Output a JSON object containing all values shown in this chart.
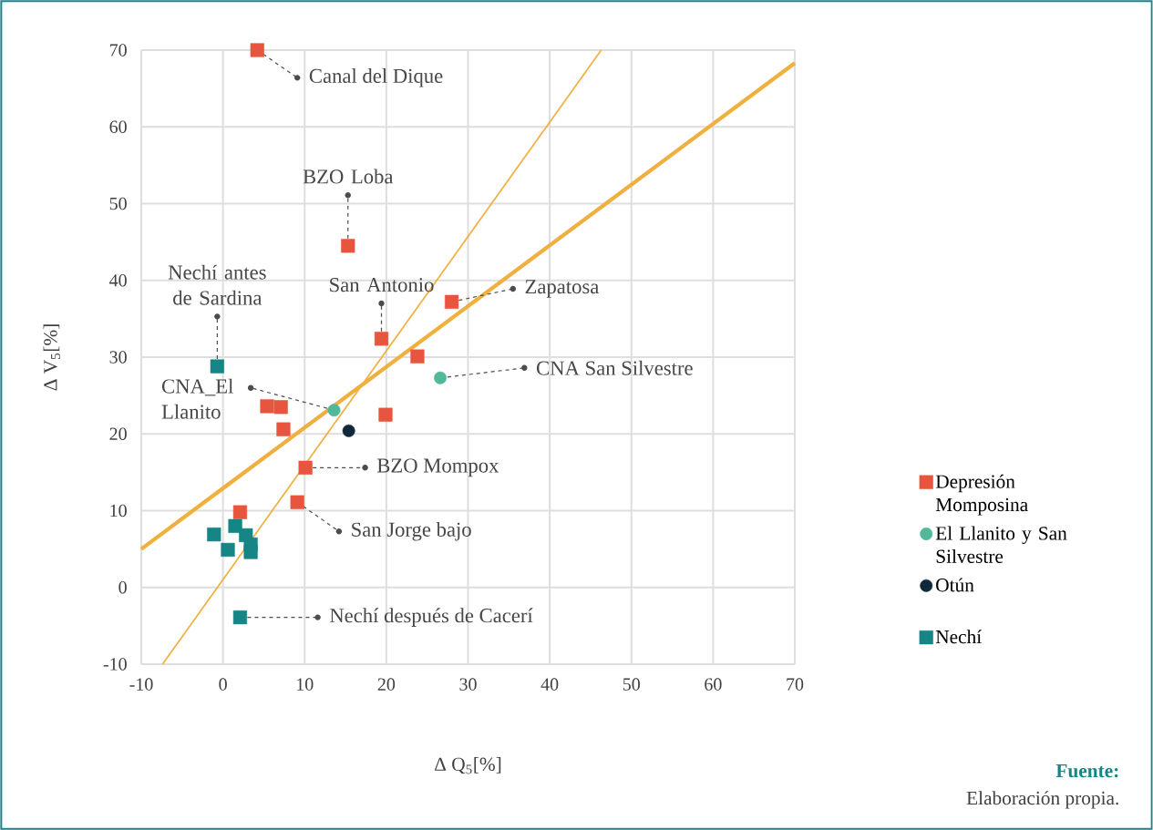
{
  "chart_data": {
    "type": "scatter",
    "xlabel": "Δ Q$_{5}$[%]",
    "ylabel": "Δ V$_{5}$[%]",
    "xlim": [
      -10,
      70
    ],
    "ylim": [
      -10,
      70
    ],
    "xticks": [
      -10,
      0,
      10,
      20,
      30,
      40,
      50,
      60,
      70
    ],
    "yticks": [
      -10,
      0,
      10,
      20,
      30,
      40,
      50,
      60,
      70
    ],
    "grid": true,
    "legend": "right",
    "series": [
      {
        "name": "Depresión Momposina",
        "color": "#e8553f",
        "marker": "square",
        "x": [
          4.2,
          15.3,
          19.4,
          28.0,
          23.8,
          19.9,
          5.4,
          7.1,
          7.4,
          10.1,
          9.1,
          2.1
        ],
        "values": [
          70.0,
          44.5,
          32.4,
          37.2,
          30.1,
          22.5,
          23.6,
          23.5,
          20.6,
          15.6,
          11.1,
          9.8
        ]
      },
      {
        "name": "El Llanito y San Silvestre",
        "color": "#52b89a",
        "marker": "circle",
        "x": [
          13.6,
          26.6
        ],
        "values": [
          23.1,
          27.3
        ]
      },
      {
        "name": "Otún",
        "color": "#10293a",
        "marker": "circle",
        "x": [
          15.4
        ],
        "values": [
          20.4
        ]
      },
      {
        "name": "Nechí",
        "color": "#168585",
        "marker": "square",
        "x": [
          -0.7,
          -1.1,
          1.5,
          2.8,
          3.4,
          3.4,
          0.6,
          2.1
        ],
        "values": [
          28.8,
          6.9,
          8.0,
          6.8,
          5.6,
          4.6,
          4.9,
          -3.9
        ]
      },
      {
        "type": "line",
        "color": "#f0b040",
        "x": [
          -10,
          70
        ],
        "values": [
          5.0,
          68.3
        ]
      },
      {
        "type": "line",
        "color": "#f0b040",
        "x": [
          -7.4,
          46.3
        ],
        "values": [
          -10,
          70
        ]
      }
    ],
    "annotations": [
      {
        "text": "Canal del Dique",
        "x": 4.2,
        "y": 70.0
      },
      {
        "text": "BZO Loba",
        "x": 15.3,
        "y": 44.5
      },
      {
        "text": "San Antonio",
        "x": 19.4,
        "y": 32.4
      },
      {
        "text": "Zapatosa",
        "x": 28.0,
        "y": 37.2
      },
      {
        "text": "CNA San Silvestre",
        "x": 26.6,
        "y": 27.3
      },
      {
        "text": "CNA_El Llanito",
        "x": 13.6,
        "y": 23.1
      },
      {
        "text": "Nechí antes de Sardina",
        "x": -0.7,
        "y": 28.8
      },
      {
        "text": "BZO Mompox",
        "x": 10.1,
        "y": 15.6
      },
      {
        "text": "San Jorge bajo",
        "x": 9.1,
        "y": 11.1
      },
      {
        "text": "Nechí después de Cacerí",
        "x": 2.1,
        "y": -3.9
      },
      "Fuente:",
      "Elaboración propia."
    ]
  }
}
